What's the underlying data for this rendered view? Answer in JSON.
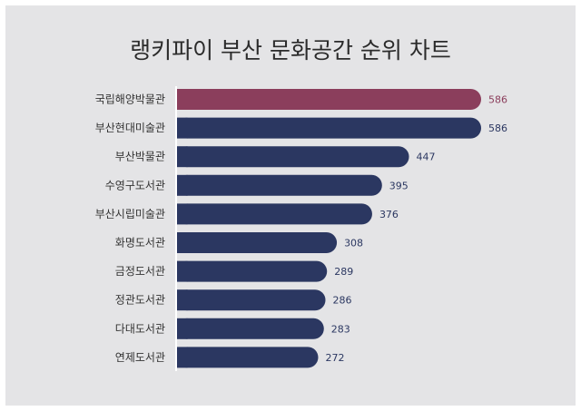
{
  "title": "랭키파이 부산 문화공간 순위 차트",
  "colors": {
    "highlight": "#8b3e5c",
    "bar": "#2b3761",
    "background": "#e4e4e6"
  },
  "chart_data": {
    "type": "bar",
    "orientation": "horizontal",
    "title": "랭키파이 부산 문화공간 순위 차트",
    "categories": [
      "국립해양박물관",
      "부산현대미술관",
      "부산박물관",
      "수영구도서관",
      "부산시립미술관",
      "화명도서관",
      "금정도서관",
      "정관도서관",
      "다대도서관",
      "연제도서관"
    ],
    "values": [
      586,
      586,
      447,
      395,
      376,
      308,
      289,
      286,
      283,
      272
    ],
    "highlight_index": 0,
    "xlim": [
      0,
      586
    ],
    "grid": false,
    "legend": "none"
  }
}
